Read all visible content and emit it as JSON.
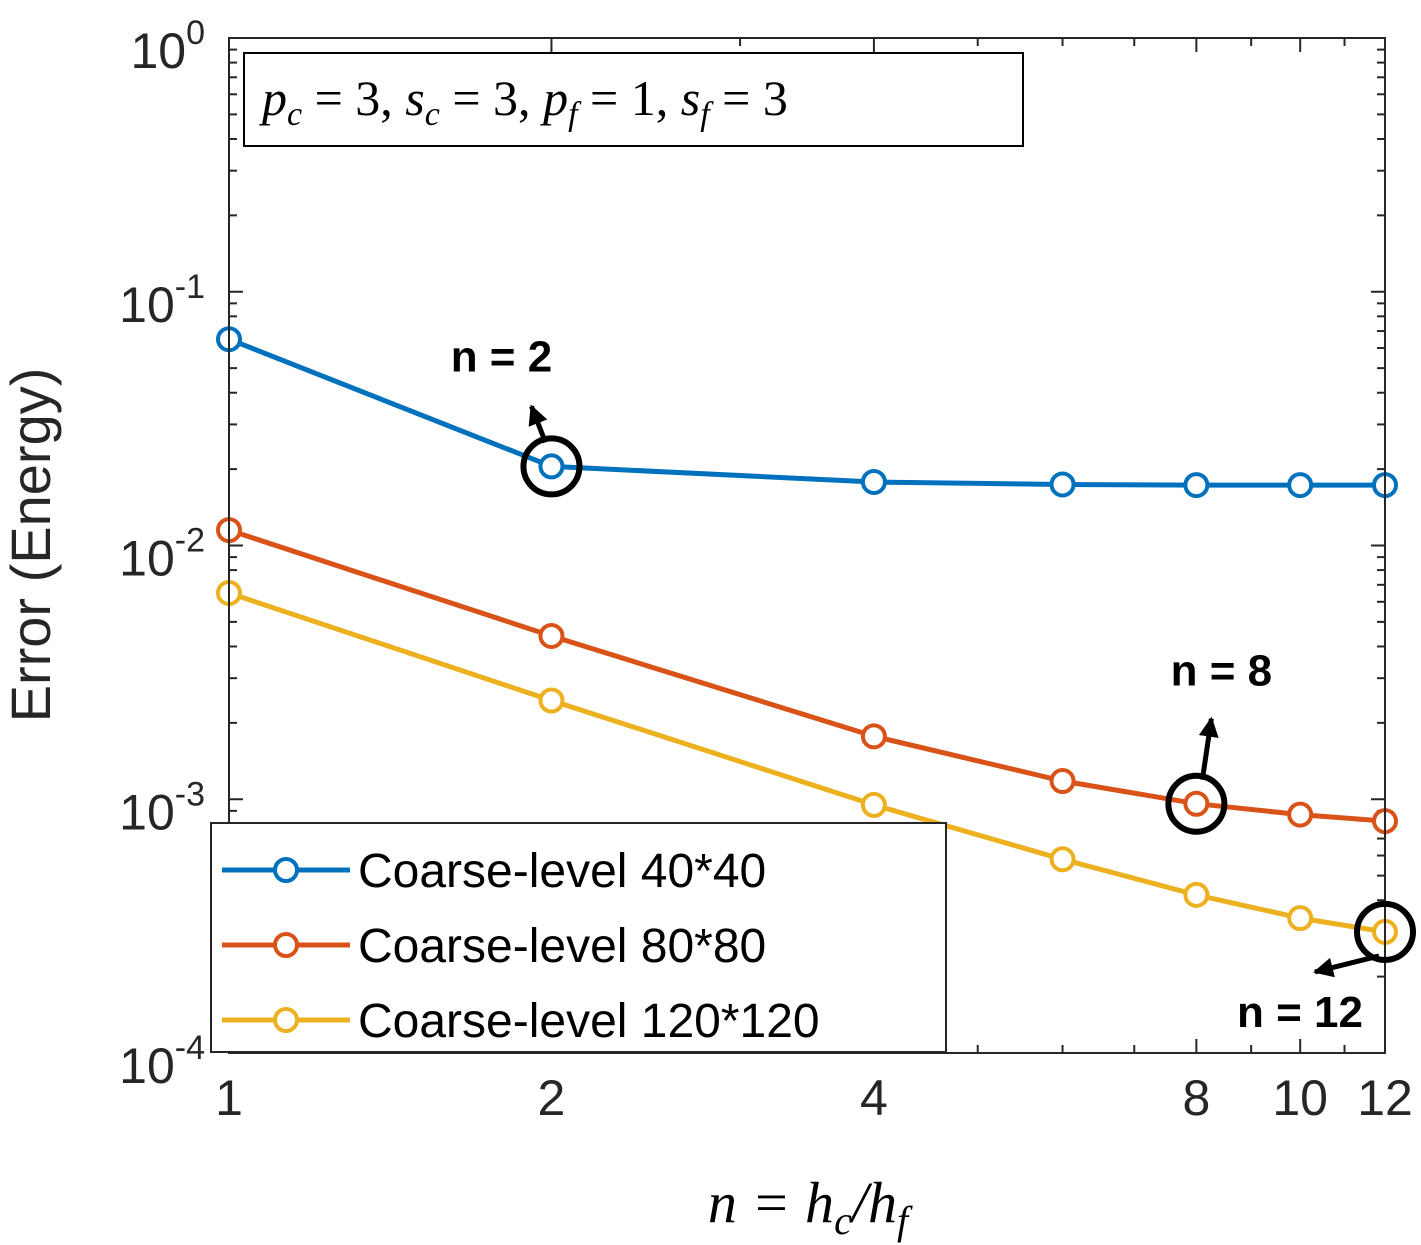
{
  "chart_data": {
    "type": "line",
    "xscale": "log",
    "yscale": "log",
    "x": [
      1,
      2,
      4,
      6,
      8,
      10,
      12
    ],
    "xticks": [
      1,
      2,
      4,
      8,
      10,
      12
    ],
    "xtick_labels": [
      "1",
      "2",
      "4",
      "8",
      "10",
      "12"
    ],
    "xlim": [
      1,
      12
    ],
    "yticks": [
      1,
      0.1,
      0.01,
      0.001,
      0.0001
    ],
    "ytick_labels": [
      {
        "base": "10",
        "exp": "0"
      },
      {
        "base": "10",
        "exp": "-1"
      },
      {
        "base": "10",
        "exp": "-2"
      },
      {
        "base": "10",
        "exp": "-3"
      },
      {
        "base": "10",
        "exp": "-4"
      }
    ],
    "ylim": [
      0.0001,
      1
    ],
    "xlabel": "n = h_c / h_f",
    "ylabel": "Error (Energy)",
    "param_box": "p_c = 3, s_c = 3, p_f = 1, s_f = 3",
    "series": [
      {
        "name": "Coarse-level 40*40",
        "color": "#0072BD",
        "values": [
          0.065,
          0.0205,
          0.0178,
          0.0174,
          0.0173,
          0.0173,
          0.0173
        ]
      },
      {
        "name": "Coarse-level 80*80",
        "color": "#D95319",
        "values": [
          0.0115,
          0.0044,
          0.00177,
          0.00118,
          0.00096,
          0.00087,
          0.00082
        ]
      },
      {
        "name": "Coarse-level 120*120",
        "color": "#EDB120",
        "values": [
          0.0065,
          0.00245,
          0.00095,
          0.00058,
          0.00042,
          0.00034,
          0.0003
        ]
      }
    ],
    "annotations": [
      {
        "label": "n = 2",
        "series": 0,
        "point": 1
      },
      {
        "label": "n = 8",
        "series": 1,
        "point": 4
      },
      {
        "label": "n = 12",
        "series": 2,
        "point": 6
      }
    ],
    "legend_position": "bottom-left",
    "grid": false
  }
}
